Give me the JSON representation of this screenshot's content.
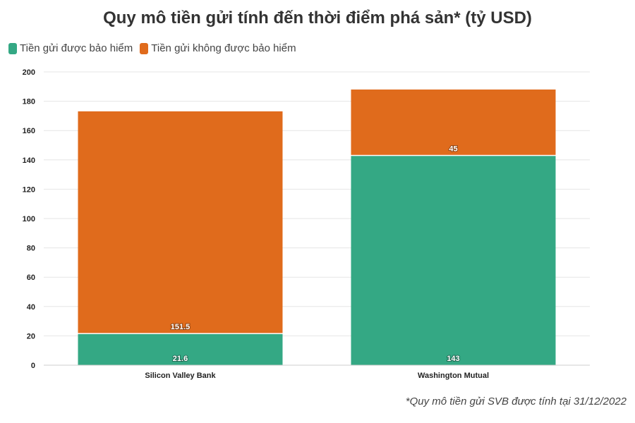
{
  "colors": {
    "insured": "#34a884",
    "uninsured": "#e06b1c",
    "grid": "#e6e6e6",
    "axis_text": "#222"
  },
  "chart_data": {
    "type": "bar",
    "stacked": true,
    "title": "Quy mô tiền gửi tính đến thời điểm phá sản* (tỷ USD)",
    "categories": [
      "Silicon Valley Bank",
      "Washington Mutual"
    ],
    "series": [
      {
        "name": "Tiền gửi được bảo hiểm",
        "values": [
          21.6,
          143
        ],
        "labels": [
          "21.6",
          "143"
        ]
      },
      {
        "name": "Tiền gửi không được bảo hiểm",
        "values": [
          151.5,
          45
        ],
        "labels": [
          "151.5",
          "45"
        ]
      }
    ],
    "ylim": [
      0,
      200
    ],
    "yticks": [
      "0",
      "20",
      "40",
      "60",
      "80",
      "100",
      "120",
      "140",
      "160",
      "180",
      "200"
    ],
    "grid": true,
    "legend_position": "top-left",
    "footnote": "*Quy mô tiền gửi SVB được tính tại 31/12/2022"
  }
}
